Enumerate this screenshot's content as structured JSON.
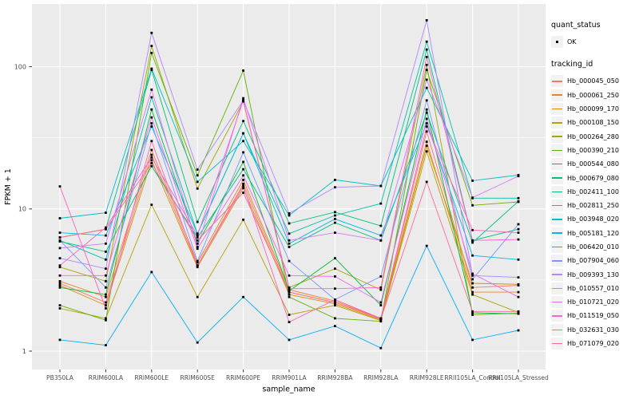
{
  "chart_data": {
    "type": "line",
    "xlabel": "sample_name",
    "ylabel": "FPKM + 1",
    "y_scale": "log10",
    "ylim": [
      1,
      280
    ],
    "y_ticks": [
      1,
      10,
      100
    ],
    "grid": "on",
    "legend_position": "right",
    "categories": [
      "PB350LA",
      "RRIM600LA",
      "RRIM600LE",
      "RRIM600SE",
      "RRIM600PE",
      "RRIM901LA",
      "RRIM928BA",
      "RRIM928LA",
      "RRIM928LE",
      "RRII105LA_Control",
      "RRII105LA_Stressed"
    ],
    "legend": {
      "quant_status_title": "quant_status",
      "quant_status_items": [
        {
          "label": "OK",
          "marker": "black-point"
        }
      ],
      "tracking_id_title": "tracking_id"
    },
    "series": [
      {
        "name": "Hb_000045_050",
        "color": "#F8766D",
        "values": [
          3.0,
          2.2,
          24,
          4.0,
          15.0,
          2.6,
          2.2,
          1.7,
          35,
          2.8,
          2.9
        ]
      },
      {
        "name": "Hb_000061_250",
        "color": "#E8842C",
        "values": [
          3.1,
          2.4,
          26,
          4.2,
          16.0,
          2.7,
          2.25,
          1.7,
          29.7,
          2.6,
          2.6
        ]
      },
      {
        "name": "Hb_000099_170",
        "color": "#D89000",
        "values": [
          2.9,
          2.1,
          22,
          3.9,
          14.0,
          2.5,
          2.15,
          1.66,
          27.8,
          3.0,
          2.95
        ]
      },
      {
        "name": "Hb_000108_150",
        "color": "#B79F00",
        "values": [
          2.0,
          1.7,
          10.7,
          2.4,
          8.4,
          1.8,
          2.1,
          1.64,
          25.4,
          2.5,
          1.87
        ]
      },
      {
        "name": "Hb_000264_280",
        "color": "#A3A500",
        "values": [
          3.9,
          3.1,
          140,
          13.9,
          57,
          2.8,
          3.8,
          2.7,
          103,
          1.8,
          1.85
        ]
      },
      {
        "name": "Hb_000390_210",
        "color": "#5EB300",
        "values": [
          2.1,
          1.65,
          125,
          17.2,
          94,
          2.4,
          1.7,
          1.62,
          95,
          10.6,
          11.2
        ]
      },
      {
        "name": "Hb_000544_080",
        "color": "#00BB38",
        "values": [
          2.8,
          2.5,
          50,
          5.7,
          21.4,
          2.65,
          4.5,
          2.1,
          50,
          1.86,
          1.83
        ]
      },
      {
        "name": "Hb_000679_080",
        "color": "#00C07D",
        "values": [
          5.9,
          5.0,
          20,
          6.3,
          19.0,
          5.4,
          8.0,
          6.0,
          47.5,
          5.8,
          11.3
        ]
      },
      {
        "name": "Hb_002411_100",
        "color": "#00BF7D",
        "values": [
          6.3,
          7.2,
          95,
          8.1,
          41.5,
          7.9,
          9.5,
          7.6,
          132,
          6.0,
          7.2
        ]
      },
      {
        "name": "Hb_002811_250",
        "color": "#00C1A7",
        "values": [
          6.0,
          4.4,
          61,
          6.7,
          34,
          6.7,
          9.0,
          10.9,
          150,
          11.9,
          11.9
        ]
      },
      {
        "name": "Hb_003948_020",
        "color": "#00BFC4",
        "values": [
          8.6,
          9.4,
          97,
          15.5,
          30,
          9.0,
          16.0,
          14.5,
          71,
          15.8,
          17.3
        ]
      },
      {
        "name": "Hb_005181_120",
        "color": "#00B8E5",
        "values": [
          6.8,
          6.5,
          38,
          6.7,
          34,
          5.7,
          8.5,
          6.5,
          40,
          4.7,
          4.4
        ]
      },
      {
        "name": "Hb_006420_010",
        "color": "#00ACFC",
        "values": [
          1.2,
          1.1,
          3.6,
          1.15,
          2.4,
          1.2,
          1.5,
          1.05,
          5.5,
          1.2,
          1.4
        ]
      },
      {
        "name": "Hb_007904_060",
        "color": "#7997FF",
        "values": [
          6.0,
          2.8,
          40,
          4.3,
          25,
          4.3,
          2.3,
          3.35,
          58,
          3.2,
          7.8
        ]
      },
      {
        "name": "Hb_009393_130",
        "color": "#AE87FF",
        "values": [
          4.5,
          3.8,
          173,
          18.9,
          58,
          9.3,
          14.2,
          14.5,
          212,
          3.4,
          3.3
        ]
      },
      {
        "name": "Hb_010557_010",
        "color": "#D874FD",
        "values": [
          5.3,
          5.7,
          69,
          5.4,
          60,
          6.0,
          6.8,
          6.0,
          81,
          12.0,
          17.0
        ]
      },
      {
        "name": "Hb_010721_020",
        "color": "#EF67EB",
        "values": [
          3.4,
          3.4,
          44,
          5.25,
          17.2,
          3.4,
          3.35,
          2.2,
          43,
          3.5,
          2.4
        ]
      },
      {
        "name": "Hb_011519_050",
        "color": "#FD61D3",
        "values": [
          4.0,
          7.4,
          23,
          6.5,
          58,
          2.75,
          2.75,
          2.8,
          117,
          6.0,
          6.1
        ]
      },
      {
        "name": "Hb_032631_030",
        "color": "#FF61BF",
        "values": [
          14.4,
          2.0,
          30,
          4.0,
          14.5,
          1.6,
          2.3,
          1.7,
          38,
          7.1,
          6.8
        ]
      },
      {
        "name": "Hb_071079_020",
        "color": "#FF6A90",
        "values": [
          6.3,
          7.2,
          21,
          6.0,
          13.0,
          2.6,
          2.2,
          1.68,
          15.5,
          1.9,
          1.9
        ]
      }
    ],
    "colors": {
      "panel_background": "#EBEBEB",
      "grid_line": "#FFFFFF",
      "tick_label": "#4D4D4D",
      "axis_title": "#000000",
      "point": "#000000",
      "legend_key_background": "#F2F2F2"
    }
  }
}
